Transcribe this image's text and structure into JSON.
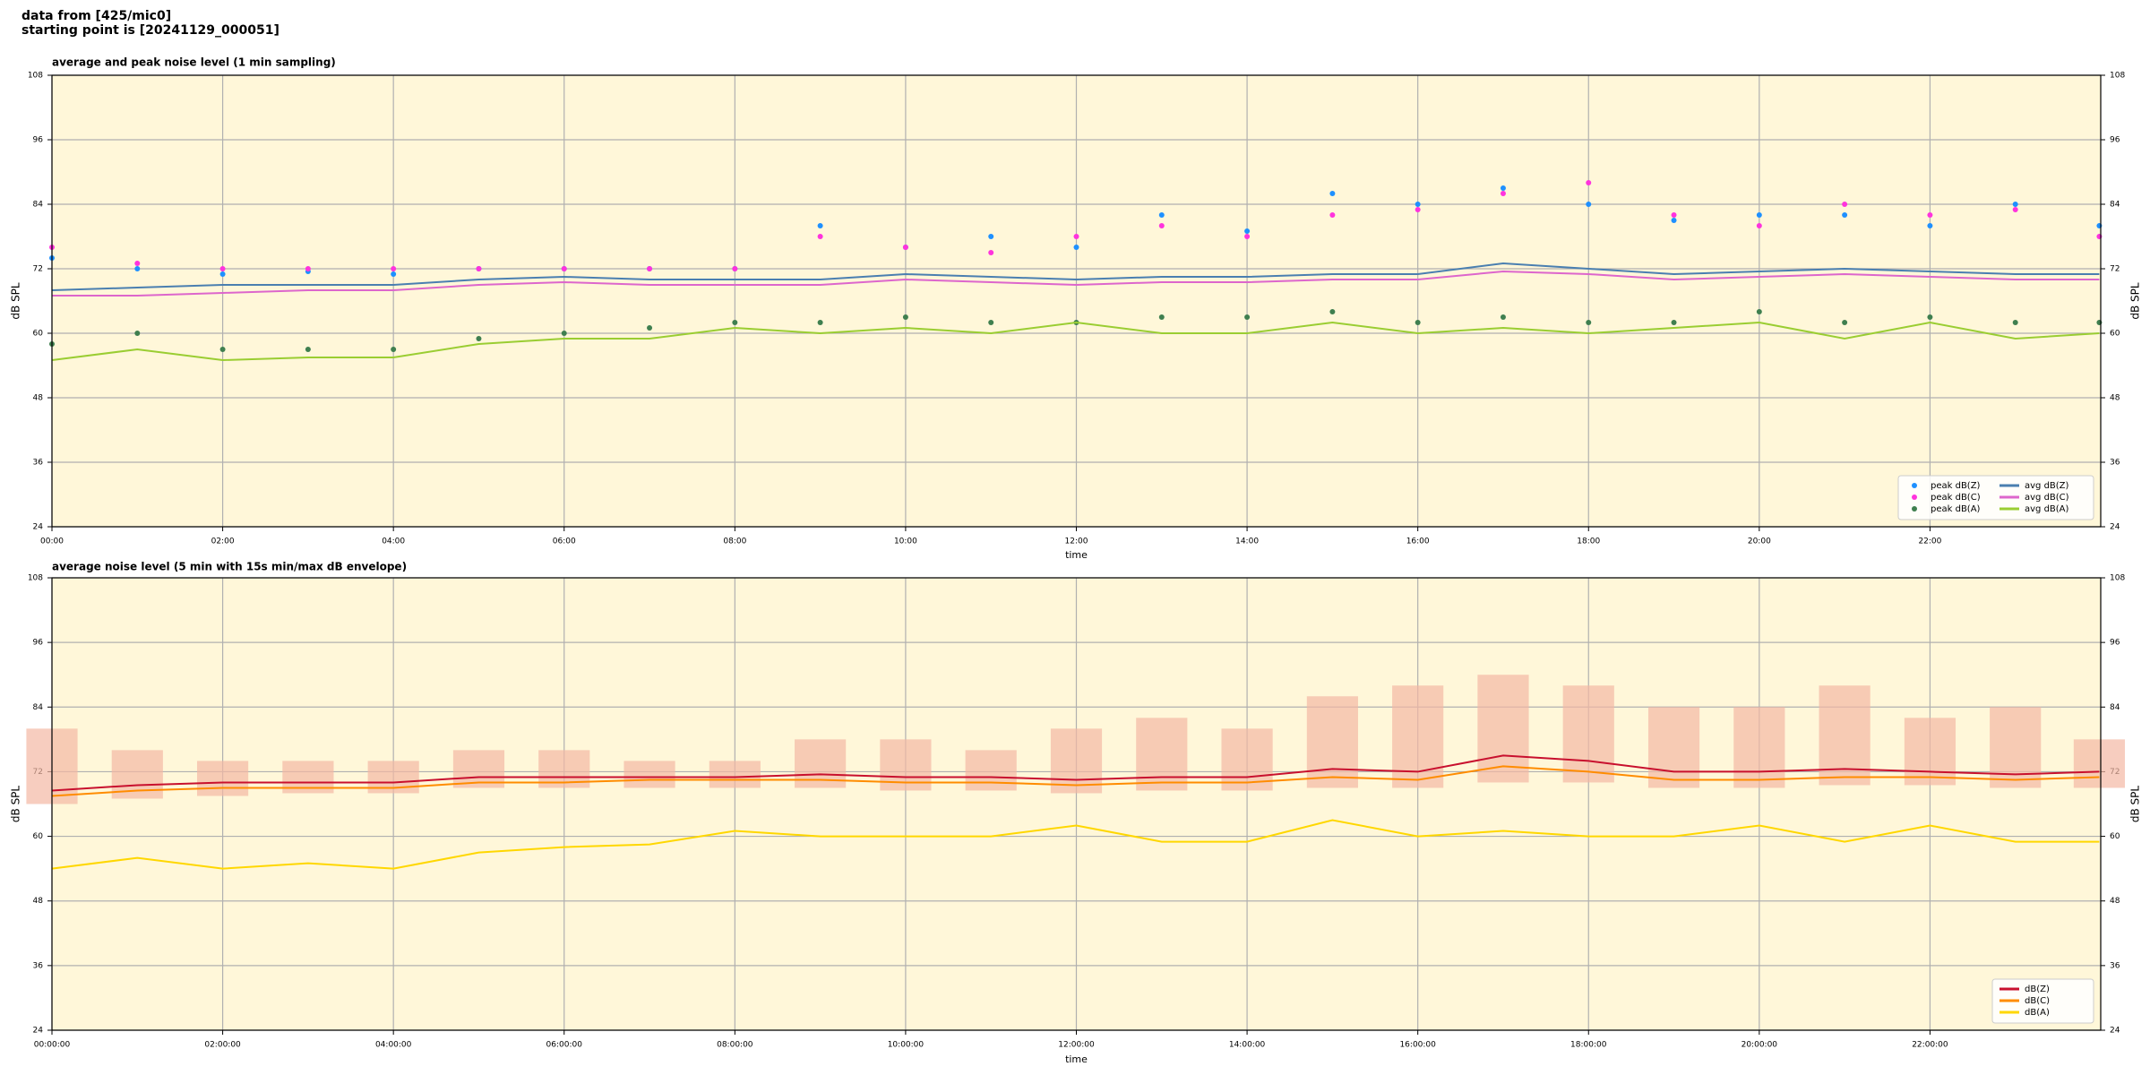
{
  "header": [
    "data from [425/mic0]",
    "starting point is [20241129_000051]"
  ],
  "chart_data": [
    {
      "type": "line",
      "title": "average and peak noise level (1 min sampling)",
      "xlabel": "time",
      "ylabel": "dB SPL",
      "xlim": [
        0,
        1440
      ],
      "ylim": [
        24,
        108
      ],
      "yticks": [
        24,
        36,
        48,
        60,
        72,
        84,
        96,
        108
      ],
      "xticks": [
        {
          "value": 0,
          "label": "00:00"
        },
        {
          "value": 120,
          "label": "02:00"
        },
        {
          "value": 240,
          "label": "04:00"
        },
        {
          "value": 360,
          "label": "06:00"
        },
        {
          "value": 480,
          "label": "08:00"
        },
        {
          "value": 600,
          "label": "10:00"
        },
        {
          "value": 720,
          "label": "12:00"
        },
        {
          "value": 840,
          "label": "14:00"
        },
        {
          "value": 960,
          "label": "16:00"
        },
        {
          "value": 1080,
          "label": "18:00"
        },
        {
          "value": 1200,
          "label": "20:00"
        },
        {
          "value": 1320,
          "label": "22:00"
        }
      ],
      "grid": true,
      "legend": "lower right",
      "legend_columns": 2,
      "background": "#fff7d9",
      "x": [
        0,
        60,
        120,
        180,
        240,
        300,
        360,
        420,
        480,
        540,
        600,
        660,
        720,
        780,
        840,
        900,
        960,
        1020,
        1080,
        1140,
        1200,
        1260,
        1320,
        1380,
        1439
      ],
      "series": [
        {
          "name": "peak dB(Z)",
          "type": "scatter",
          "color": "#1e90ff",
          "values": [
            74,
            72,
            71,
            71.5,
            71,
            72,
            72,
            72,
            72,
            80,
            76,
            78,
            76,
            82,
            79,
            86,
            84,
            87,
            84,
            81,
            82,
            82,
            80,
            84,
            80
          ]
        },
        {
          "name": "peak dB(C)",
          "type": "scatter",
          "color": "#ff33dd",
          "values": [
            76,
            73,
            72,
            72,
            72,
            72,
            72,
            72,
            72,
            78,
            76,
            75,
            78,
            80,
            78,
            82,
            83,
            86,
            88,
            82,
            80,
            84,
            82,
            83,
            78
          ]
        },
        {
          "name": "peak dB(A)",
          "type": "scatter",
          "color": "#3f7f4f",
          "values": [
            58,
            60,
            57,
            57,
            57,
            59,
            60,
            61,
            62,
            62,
            63,
            62,
            62,
            63,
            63,
            64,
            62,
            63,
            62,
            62,
            64,
            62,
            63,
            62,
            62
          ]
        },
        {
          "name": "avg dB(Z)",
          "type": "line",
          "color": "#4a7fb0",
          "values": [
            68,
            68.5,
            69,
            69,
            69,
            70,
            70.5,
            70,
            70,
            70,
            71,
            70.5,
            70,
            70.5,
            70.5,
            71,
            71,
            73,
            72,
            71,
            71.5,
            72,
            71.5,
            71,
            71
          ]
        },
        {
          "name": "avg dB(C)",
          "type": "line",
          "color": "#dd66cc",
          "values": [
            67,
            67,
            67.5,
            68,
            68,
            69,
            69.5,
            69,
            69,
            69,
            70,
            69.5,
            69,
            69.5,
            69.5,
            70,
            70,
            71.5,
            71,
            70,
            70.5,
            71,
            70.5,
            70,
            70
          ]
        },
        {
          "name": "avg dB(A)",
          "type": "line",
          "color": "#9acd32",
          "values": [
            55,
            57,
            55,
            55.5,
            55.5,
            58,
            59,
            59,
            61,
            60,
            61,
            60,
            62,
            60,
            60,
            62,
            60,
            61,
            60,
            61,
            62,
            59,
            62,
            59,
            60
          ]
        }
      ]
    },
    {
      "type": "line",
      "title": "average noise level (5 min with 15s min/max dB envelope)",
      "xlabel": "time",
      "ylabel": "dB SPL",
      "xlim": [
        0,
        1440
      ],
      "ylim": [
        24,
        108
      ],
      "yticks": [
        24,
        36,
        48,
        60,
        72,
        84,
        96,
        108
      ],
      "xticks": [
        {
          "value": 0,
          "label": "00:00:00"
        },
        {
          "value": 120,
          "label": "02:00:00"
        },
        {
          "value": 240,
          "label": "04:00:00"
        },
        {
          "value": 360,
          "label": "06:00:00"
        },
        {
          "value": 480,
          "label": "08:00:00"
        },
        {
          "value": 600,
          "label": "10:00:00"
        },
        {
          "value": 720,
          "label": "12:00:00"
        },
        {
          "value": 840,
          "label": "14:00:00"
        },
        {
          "value": 960,
          "label": "16:00:00"
        },
        {
          "value": 1080,
          "label": "18:00:00"
        },
        {
          "value": 1200,
          "label": "20:00:00"
        },
        {
          "value": 1320,
          "label": "22:00:00"
        }
      ],
      "grid": true,
      "legend": "lower right",
      "legend_columns": 1,
      "background": "#fff7d9",
      "x": [
        0,
        60,
        120,
        180,
        240,
        300,
        360,
        420,
        480,
        540,
        600,
        660,
        720,
        780,
        840,
        900,
        960,
        1020,
        1080,
        1140,
        1200,
        1260,
        1320,
        1380,
        1439
      ],
      "envelope": {
        "color": "#f4b8a4",
        "low": [
          66,
          67,
          67.5,
          68,
          68,
          69,
          69,
          69,
          69,
          69,
          68.5,
          68.5,
          68,
          68.5,
          68.5,
          69,
          69,
          70,
          70,
          69,
          69,
          69.5,
          69.5,
          69,
          69
        ],
        "high": [
          80,
          76,
          74,
          74,
          74,
          76,
          76,
          74,
          74,
          78,
          78,
          76,
          80,
          82,
          80,
          86,
          88,
          90,
          88,
          84,
          84,
          88,
          82,
          84,
          78
        ]
      },
      "series": [
        {
          "name": "dB(Z)",
          "type": "line",
          "color": "#c8102e",
          "values": [
            68.5,
            69.5,
            70,
            70,
            70,
            71,
            71,
            71,
            71,
            71.5,
            71,
            71,
            70.5,
            71,
            71,
            72.5,
            72,
            75,
            74,
            72,
            72,
            72.5,
            72,
            71.5,
            72
          ]
        },
        {
          "name": "dB(C)",
          "type": "line",
          "color": "#ff8c00",
          "values": [
            67.5,
            68.5,
            69,
            69,
            69,
            70,
            70,
            70.5,
            70.5,
            70.5,
            70,
            70,
            69.5,
            70,
            70,
            71,
            70.5,
            73,
            72,
            70.5,
            70.5,
            71,
            71,
            70.5,
            71
          ]
        },
        {
          "name": "dB(A)",
          "type": "line",
          "color": "#ffd700",
          "values": [
            54,
            56,
            54,
            55,
            54,
            57,
            58,
            58.5,
            61,
            60,
            60,
            60,
            62,
            59,
            59,
            63,
            60,
            61,
            60,
            60,
            62,
            59,
            62,
            59,
            59
          ]
        }
      ]
    }
  ]
}
